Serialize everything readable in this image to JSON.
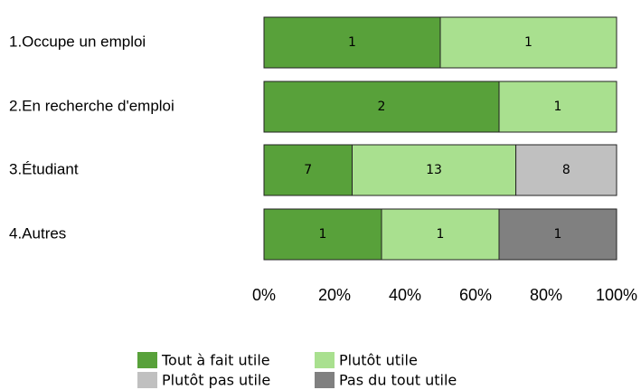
{
  "chart_data": {
    "type": "bar",
    "orientation": "horizontal",
    "stacking": "percent",
    "categories": [
      "1.Occupe un emploi",
      "2.En recherche d'emploi",
      "3.Étudiant",
      "4.Autres"
    ],
    "series": [
      {
        "name": "Tout à fait utile",
        "color": "#58a13a",
        "values": [
          1,
          2,
          7,
          1
        ]
      },
      {
        "name": "Plutôt utile",
        "color": "#a9e08f",
        "values": [
          1,
          1,
          13,
          1
        ]
      },
      {
        "name": "Plutôt pas utile",
        "color": "#c0c0c0",
        "values": [
          0,
          0,
          8,
          0
        ]
      },
      {
        "name": "Pas du tout utile",
        "color": "#808080",
        "values": [
          0,
          0,
          0,
          1
        ]
      }
    ],
    "xlim": [
      0,
      100
    ],
    "xticks": [
      {
        "value": 0,
        "label": "0%"
      },
      {
        "value": 20,
        "label": "20%"
      },
      {
        "value": 40,
        "label": "40%"
      },
      {
        "value": 60,
        "label": "60%"
      },
      {
        "value": 80,
        "label": "80%"
      },
      {
        "value": 100,
        "label": "100%"
      }
    ],
    "grid": false
  }
}
